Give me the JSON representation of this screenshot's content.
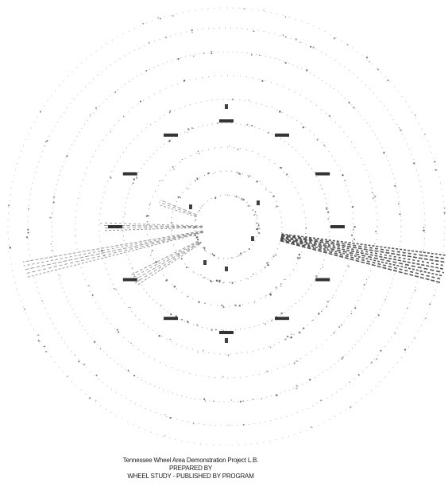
{
  "caption": {
    "line1": "Tennessee Wheel Area Demonstration Project L.B.",
    "line2": "PREPARED BY",
    "line3": "WHEEL STUDY - PUBLISHED BY PROGRAM"
  },
  "colors": {
    "ring": "#2a2a2a",
    "spoke": "#3a3a3a",
    "spoke_light": "#8a8a8a",
    "marker": "#111111",
    "background": "#ffffff"
  }
}
